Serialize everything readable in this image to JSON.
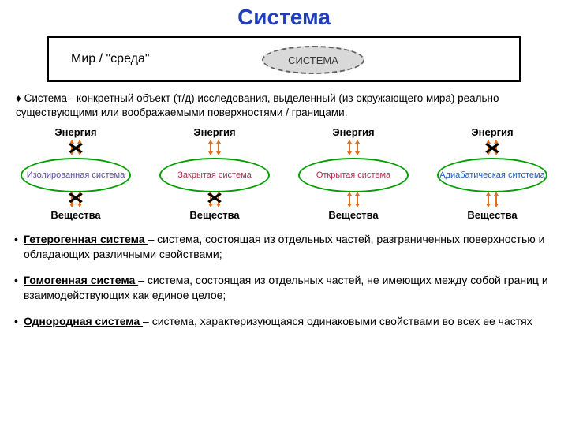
{
  "title": {
    "text": "Система",
    "color": "#1f3fbf",
    "fontsize": 28
  },
  "world_box": {
    "label": "Мир / \"среда\"",
    "system_label": "СИСТЕМА",
    "ellipse_fill": "#d9d9d9",
    "ellipse_border": "#606060"
  },
  "definition_line": "♦ Система - конкретный объект (т/д) исследования, выделенный (из окружающего мира) реально существующими или воображаемыми поверхностями / границами.",
  "systems": [
    {
      "top": "Энергия",
      "bottom": "Вещества",
      "name": "Изолированная система",
      "ellipse_color": "#00a000",
      "label_color": "#5a4aa0",
      "energy_open": false,
      "matter_open": false,
      "arrow_color": "#e07020"
    },
    {
      "top": "Энергия",
      "bottom": "Вещества",
      "name": "Закрытая система",
      "ellipse_color": "#00a000",
      "label_color": "#b03050",
      "energy_open": true,
      "matter_open": false,
      "arrow_color": "#e07020"
    },
    {
      "top": "Энергия",
      "bottom": "Вещества",
      "name": "Открытая система",
      "ellipse_color": "#00a000",
      "label_color": "#b03050",
      "energy_open": true,
      "matter_open": true,
      "arrow_color": "#e07020"
    },
    {
      "top": "Энергия",
      "bottom": "Вещества",
      "name": "Адиабатическая ситстема",
      "ellipse_color": "#00a000",
      "label_color": "#2060c0",
      "energy_open": false,
      "matter_open": true,
      "arrow_color": "#e07020"
    }
  ],
  "definitions": [
    {
      "term": " Гетерогенная система ",
      "text": "– система, состоящая из отдельных частей, разграниченных поверхностью и обладающих различными свойствами;"
    },
    {
      "term": " Гомогенная система ",
      "text": "– система, состоящая из отдельных частей, не имеющих между собой границ и взаимодействующих как единое целое;"
    },
    {
      "term": " Однородная система ",
      "text": "– система, характеризующаяся одинаковыми свойствами во всех ее частях"
    }
  ],
  "colors": {
    "background": "#ffffff",
    "text": "#000000"
  }
}
